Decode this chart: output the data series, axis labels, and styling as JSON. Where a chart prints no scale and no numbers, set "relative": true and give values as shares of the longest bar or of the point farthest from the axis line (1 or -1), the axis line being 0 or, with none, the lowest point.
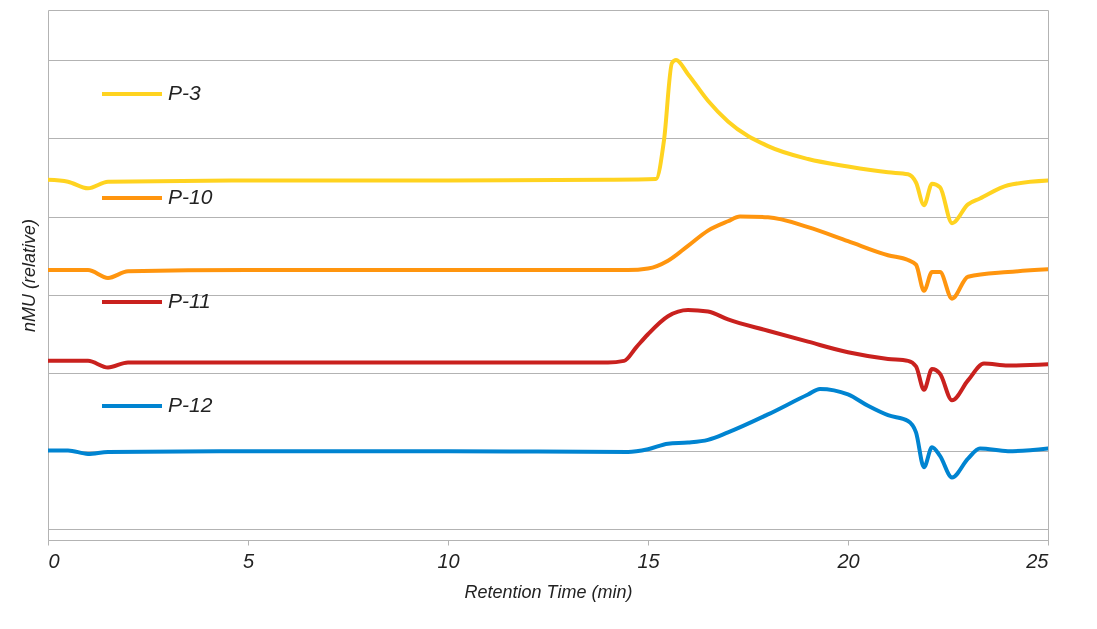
{
  "chart_data": {
    "type": "line",
    "relative": true,
    "xlabel": "Retention Time (min)",
    "ylabel": "nMU (relative)",
    "xlim": [
      0,
      25
    ],
    "xticks": [
      0,
      5,
      10,
      15,
      20,
      25
    ],
    "grid": "y",
    "legend": "top left",
    "series": [
      {
        "name": "P-3",
        "color": "#ffd320",
        "x": [
          0,
          0.5,
          1,
          1.5,
          5,
          10,
          14,
          15.2,
          15.4,
          15.6,
          15.7,
          16,
          16.5,
          17,
          18,
          19,
          20,
          21,
          21.5,
          21.7,
          21.9,
          22.1,
          22.3,
          22.6,
          23,
          23.3,
          24,
          25
        ],
        "values": [
          0.694,
          0.689,
          0.672,
          0.689,
          0.692,
          0.692,
          0.694,
          0.696,
          0.795,
          0.993,
          1,
          0.964,
          0.896,
          0.843,
          0.78,
          0.747,
          0.728,
          0.713,
          0.708,
          0.687,
          0.629,
          0.684,
          0.675,
          0.583,
          0.631,
          0.646,
          0.68,
          0.692
        ]
      },
      {
        "name": "P-10",
        "color": "#ff950e",
        "x": [
          0,
          1,
          1.5,
          2,
          5,
          10,
          14.5,
          15,
          15.5,
          16,
          16.5,
          17,
          17.3,
          18,
          19,
          20,
          21,
          21.5,
          21.7,
          21.9,
          22.1,
          22.3,
          22.6,
          23,
          24,
          25
        ],
        "values": [
          0.463,
          0.463,
          0.443,
          0.46,
          0.463,
          0.463,
          0.463,
          0.467,
          0.487,
          0.525,
          0.564,
          0.588,
          0.6,
          0.598,
          0.573,
          0.537,
          0.501,
          0.489,
          0.477,
          0.41,
          0.458,
          0.458,
          0.39,
          0.446,
          0.458,
          0.465
        ]
      },
      {
        "name": "P-11",
        "color": "#c9211e",
        "x": [
          0,
          1,
          1.5,
          2,
          5,
          10,
          14,
          14.4,
          14.7,
          15,
          15.5,
          16,
          16.5,
          17,
          18,
          19,
          20,
          21,
          21.5,
          21.7,
          21.9,
          22.1,
          22.3,
          22.6,
          23,
          23.4,
          24,
          25
        ],
        "values": [
          0.231,
          0.231,
          0.214,
          0.227,
          0.227,
          0.227,
          0.227,
          0.231,
          0.265,
          0.299,
          0.345,
          0.361,
          0.357,
          0.337,
          0.308,
          0.28,
          0.253,
          0.236,
          0.231,
          0.217,
          0.157,
          0.21,
          0.198,
          0.13,
          0.181,
          0.224,
          0.219,
          0.222
        ]
      },
      {
        "name": "P-12",
        "color": "#0084d1",
        "x": [
          0,
          0.5,
          1,
          1.5,
          5,
          10,
          14.5,
          15,
          15.5,
          16,
          16.5,
          17,
          18,
          19,
          19.3,
          20,
          20.5,
          21,
          21.5,
          21.7,
          21.9,
          22.1,
          22.3,
          22.6,
          23,
          23.3,
          24,
          25
        ],
        "values": [
          0.002,
          0.002,
          -0.007,
          -0.002,
          0,
          0,
          -0.002,
          0.005,
          0.019,
          0.022,
          0.029,
          0.048,
          0.094,
          0.145,
          0.159,
          0.145,
          0.116,
          0.092,
          0.077,
          0.048,
          -0.041,
          0.01,
          -0.012,
          -0.067,
          -0.019,
          0.007,
          0,
          0.007
        ]
      }
    ]
  }
}
